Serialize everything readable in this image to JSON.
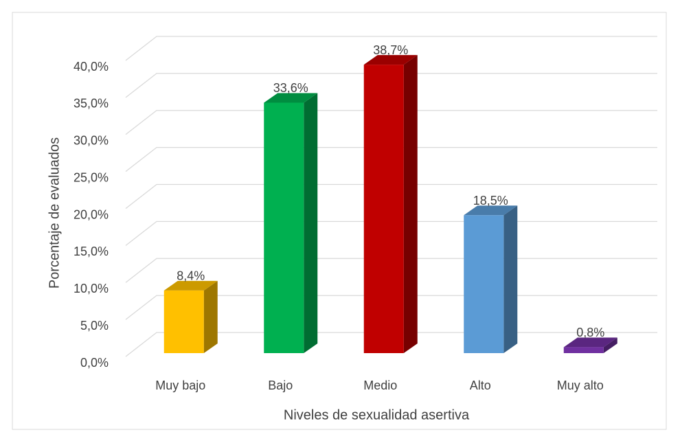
{
  "chart_data": {
    "type": "bar3d",
    "x_label": "Niveles de sexualidad asertiva",
    "y_label": "Porcentaje de evaluados",
    "categories": [
      "Muy bajo",
      "Bajo",
      "Medio",
      "Alto",
      "Muy alto"
    ],
    "values": [
      8.4,
      33.6,
      38.7,
      18.5,
      0.8
    ],
    "value_labels": [
      "8,4%",
      "33,6%",
      "38,7%",
      "18,5%",
      "0,8%"
    ],
    "colors": [
      "#ffc000",
      "#00b050",
      "#c00000",
      "#5b9bd5",
      "#7030a0"
    ],
    "ylim": [
      0,
      40
    ],
    "yticks": [
      {
        "value": 0,
        "label": "0,0%"
      },
      {
        "value": 5,
        "label": "5,0%"
      },
      {
        "value": 10,
        "label": "10,0%"
      },
      {
        "value": 15,
        "label": "15,0%"
      },
      {
        "value": 20,
        "label": "20,0%"
      },
      {
        "value": 25,
        "label": "25,0%"
      },
      {
        "value": 30,
        "label": "30,0%"
      },
      {
        "value": 35,
        "label": "35,0%"
      },
      {
        "value": 40,
        "label": "40,0%"
      }
    ],
    "grid": true
  }
}
